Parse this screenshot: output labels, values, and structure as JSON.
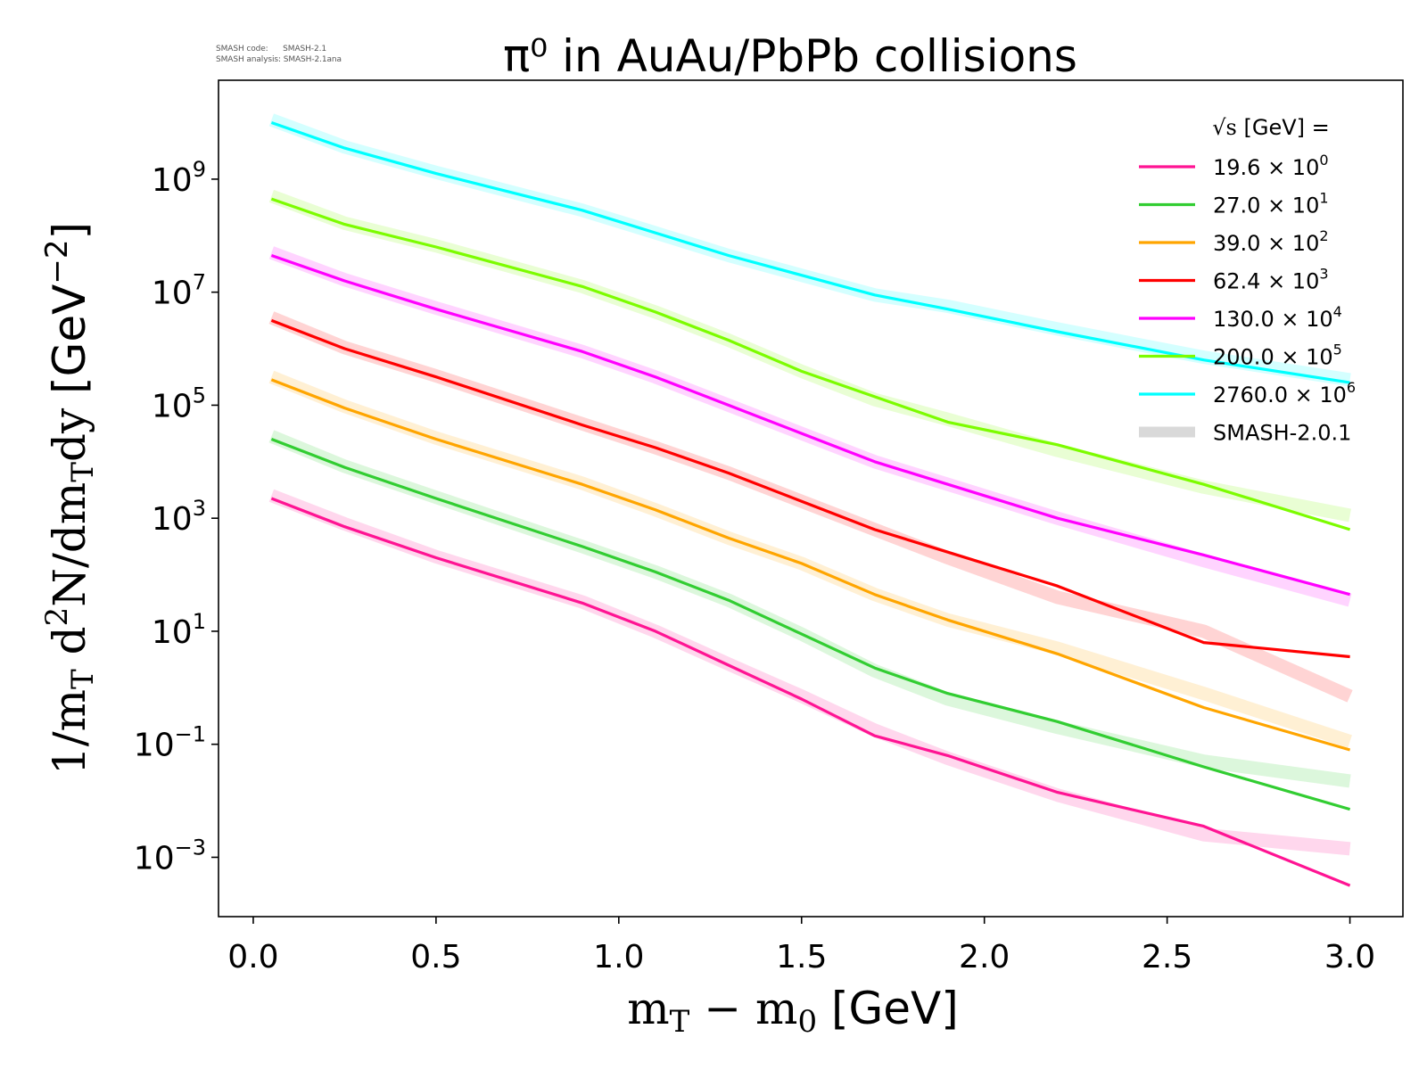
{
  "watermark": {
    "code_line": "SMASH code:      SMASH-2.1",
    "analysis_line": "SMASH analysis: SMASH-2.1ana"
  },
  "chart_data": {
    "type": "line",
    "title": "π⁰ in AuAu/PbPb collisions",
    "xlabel": "m_T − m_0 [GeV]",
    "xlabel_parts": {
      "a": "m",
      "a_sub": "T",
      "op": " − ",
      "b": "m",
      "b_sub": "0",
      "unit": "[GeV]"
    },
    "ylabel": "1/m_T d²N/dm_T dy [GeV⁻²]",
    "ylabel_parts": {
      "p1": "1/m",
      "p1_sub": "T",
      "p2": " d",
      "p2_sup": "2",
      "p3": "N/dm",
      "p3_sub": "T",
      "p4": "dy",
      "unit": "[GeV",
      "unit_sup": "−2",
      "unit_close": "]"
    },
    "xscale": "linear",
    "yscale": "log",
    "xlim": [
      -0.095,
      3.145
    ],
    "ylim_log10": [
      -4.05,
      10.75
    ],
    "x_ticks": [
      0.0,
      0.5,
      1.0,
      1.5,
      2.0,
      2.5,
      3.0
    ],
    "x_tick_labels": [
      "0.0",
      "0.5",
      "1.0",
      "1.5",
      "2.0",
      "2.5",
      "3.0"
    ],
    "y_ticks_log10": [
      -3,
      -1,
      1,
      3,
      5,
      7,
      9
    ],
    "y_tick_labels": [
      {
        "base": "10",
        "exp": "−3"
      },
      {
        "base": "10",
        "exp": "−1"
      },
      {
        "base": "10",
        "exp": "1"
      },
      {
        "base": "10",
        "exp": "3"
      },
      {
        "base": "10",
        "exp": "5"
      },
      {
        "base": "10",
        "exp": "7"
      },
      {
        "base": "10",
        "exp": "9"
      }
    ],
    "legend": {
      "title_prefix": "√s",
      "title_suffix": "[GeV] =",
      "placement": "top-right",
      "reference_label": "SMASH-2.0.1",
      "reference_color": "#d9d9d9"
    },
    "x": [
      0.05,
      0.25,
      0.5,
      0.9,
      1.1,
      1.3,
      1.5,
      1.7,
      1.9,
      2.2,
      2.6,
      3.0
    ],
    "series": [
      {
        "name": "19.6",
        "scale_exp": "0",
        "color": "#ff1493",
        "values_log10": [
          3.35,
          2.85,
          2.3,
          1.5,
          1.0,
          0.4,
          -0.2,
          -0.85,
          -1.2,
          -1.85,
          -2.45,
          -3.5
        ],
        "reference_log10": [
          3.4,
          2.9,
          2.32,
          1.52,
          1.0,
          0.42,
          -0.15,
          -0.75,
          -1.25,
          -1.9,
          -2.6,
          -2.85
        ]
      },
      {
        "name": "27.0",
        "scale_exp": "1",
        "color": "#32cd32",
        "values_log10": [
          4.4,
          3.9,
          3.35,
          2.5,
          2.05,
          1.55,
          0.95,
          0.35,
          -0.1,
          -0.6,
          -1.4,
          -2.15
        ],
        "reference_log10": [
          4.45,
          3.92,
          3.37,
          2.5,
          2.05,
          1.55,
          0.95,
          0.3,
          -0.2,
          -0.7,
          -1.3,
          -1.65
        ]
      },
      {
        "name": "39.0",
        "scale_exp": "2",
        "color": "#ffa500",
        "values_log10": [
          5.45,
          4.95,
          4.4,
          3.6,
          3.15,
          2.65,
          2.2,
          1.65,
          1.2,
          0.6,
          -0.35,
          -1.1
        ],
        "reference_log10": [
          5.5,
          4.98,
          4.42,
          3.62,
          3.15,
          2.65,
          2.2,
          1.65,
          1.2,
          0.7,
          -0.1,
          -0.95
        ]
      },
      {
        "name": "62.4",
        "scale_exp": "3",
        "color": "#ff0000",
        "values_log10": [
          6.5,
          6.0,
          5.5,
          4.65,
          4.25,
          3.8,
          3.3,
          2.8,
          2.4,
          1.8,
          0.8,
          0.55
        ],
        "reference_log10": [
          6.55,
          6.02,
          5.52,
          4.67,
          4.25,
          3.8,
          3.3,
          2.8,
          2.3,
          1.6,
          1.0,
          -0.15
        ]
      },
      {
        "name": "130.0",
        "scale_exp": "4",
        "color": "#ff00ff",
        "values_log10": [
          7.65,
          7.2,
          6.7,
          5.95,
          5.5,
          5.0,
          4.5,
          4.0,
          3.6,
          3.0,
          2.35,
          1.65
        ],
        "reference_log10": [
          7.7,
          7.22,
          6.72,
          5.95,
          5.5,
          5.0,
          4.5,
          4.0,
          3.6,
          3.0,
          2.25,
          1.55
        ]
      },
      {
        "name": "200.0",
        "scale_exp": "5",
        "color": "#7cfc00",
        "values_log10": [
          8.65,
          8.2,
          7.8,
          7.1,
          6.65,
          6.15,
          5.6,
          5.15,
          4.7,
          4.3,
          3.6,
          2.8
        ],
        "reference_log10": [
          8.7,
          8.22,
          7.82,
          7.1,
          6.65,
          6.15,
          5.6,
          5.1,
          4.75,
          4.2,
          3.55,
          3.05
        ]
      },
      {
        "name": "2760.0",
        "scale_exp": "6",
        "color": "#00ffff",
        "values_log10": [
          10.0,
          9.55,
          9.1,
          8.45,
          8.05,
          7.65,
          7.3,
          6.95,
          6.7,
          6.3,
          5.8,
          5.4
        ],
        "reference_log10": [
          10.05,
          9.57,
          9.12,
          8.45,
          8.05,
          7.65,
          7.3,
          6.95,
          6.75,
          6.35,
          5.85,
          5.45
        ]
      }
    ]
  }
}
